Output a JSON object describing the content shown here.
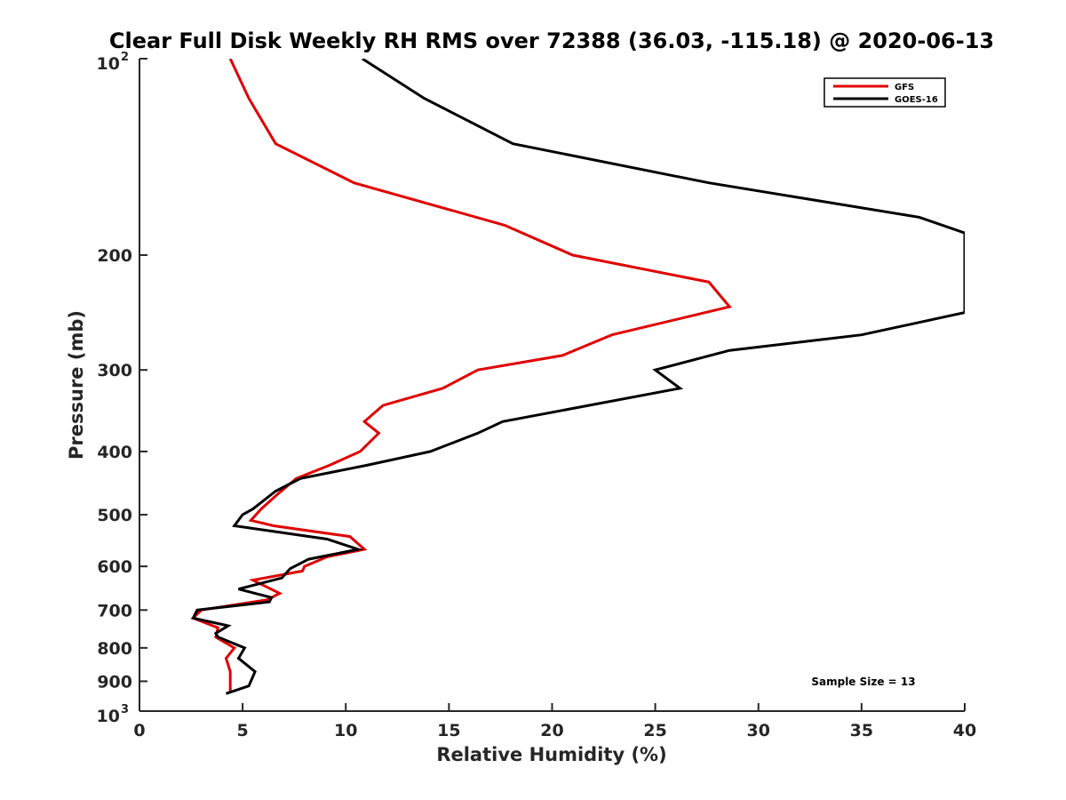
{
  "chart_data": {
    "type": "line",
    "title": "Clear Full Disk Weekly RH RMS over 72388 (36.03, -115.18) @ 2020-06-13",
    "xlabel": "Relative Humidity (%)",
    "ylabel": "Pressure (mb)",
    "xlim": [
      0,
      40
    ],
    "ylim": [
      100,
      1000
    ],
    "y_scale": "log",
    "y_reversed": true,
    "x_ticks": [
      "0",
      "5",
      "10",
      "15",
      "20",
      "25",
      "30",
      "35",
      "40"
    ],
    "y_ticks": [
      {
        "value": 100,
        "base": "10",
        "exp": "2"
      },
      {
        "value": 200,
        "label": "200"
      },
      {
        "value": 300,
        "label": "300"
      },
      {
        "value": 400,
        "label": "400"
      },
      {
        "value": 500,
        "label": "500"
      },
      {
        "value": 600,
        "label": "600"
      },
      {
        "value": 700,
        "label": "700"
      },
      {
        "value": 800,
        "label": "800"
      },
      {
        "value": 900,
        "label": "900"
      },
      {
        "value": 1000,
        "base": "10",
        "exp": "3"
      }
    ],
    "legend_position": "top-right",
    "grid": false,
    "series": [
      {
        "name": "GFS",
        "color": "#e00000",
        "points": [
          [
            4.4,
            100
          ],
          [
            5.3,
            115
          ],
          [
            6.6,
            135
          ],
          [
            10.4,
            155
          ],
          [
            17.7,
            180
          ],
          [
            21.0,
            200
          ],
          [
            27.6,
            220
          ],
          [
            28.6,
            240
          ],
          [
            22.9,
            265
          ],
          [
            20.5,
            285
          ],
          [
            16.4,
            300
          ],
          [
            14.7,
            320
          ],
          [
            11.8,
            340
          ],
          [
            10.9,
            360
          ],
          [
            11.6,
            375
          ],
          [
            10.7,
            400
          ],
          [
            9.2,
            420
          ],
          [
            7.6,
            440
          ],
          [
            6.7,
            465
          ],
          [
            5.9,
            490
          ],
          [
            5.4,
            510
          ],
          [
            6.5,
            520
          ],
          [
            10.2,
            540
          ],
          [
            10.9,
            565
          ],
          [
            9.1,
            580
          ],
          [
            8.0,
            600
          ],
          [
            7.9,
            610
          ],
          [
            5.5,
            630
          ],
          [
            6.8,
            660
          ],
          [
            6.2,
            675
          ],
          [
            3.0,
            700
          ],
          [
            2.6,
            720
          ],
          [
            3.8,
            745
          ],
          [
            3.7,
            770
          ],
          [
            4.6,
            800
          ],
          [
            4.2,
            830
          ],
          [
            4.4,
            870
          ],
          [
            4.4,
            935
          ]
        ]
      },
      {
        "name": "GOES-16",
        "color": "#000000",
        "points": [
          [
            10.8,
            100
          ],
          [
            13.8,
            115
          ],
          [
            18.1,
            135
          ],
          [
            27.6,
            155
          ],
          [
            37.8,
            175
          ],
          [
            40.0,
            185
          ],
          [
            40.0,
            245
          ],
          [
            35.0,
            265
          ],
          [
            28.6,
            280
          ],
          [
            25.0,
            300
          ],
          [
            26.2,
            320
          ],
          [
            17.6,
            360
          ],
          [
            16.4,
            375
          ],
          [
            14.1,
            400
          ],
          [
            11.0,
            420
          ],
          [
            7.8,
            440
          ],
          [
            6.6,
            460
          ],
          [
            5.5,
            490
          ],
          [
            5.0,
            500
          ],
          [
            4.6,
            520
          ],
          [
            9.1,
            545
          ],
          [
            10.6,
            565
          ],
          [
            8.2,
            585
          ],
          [
            7.3,
            605
          ],
          [
            6.9,
            625
          ],
          [
            4.8,
            650
          ],
          [
            6.4,
            670
          ],
          [
            6.3,
            680
          ],
          [
            2.8,
            700
          ],
          [
            2.6,
            720
          ],
          [
            4.3,
            740
          ],
          [
            3.7,
            760
          ],
          [
            3.8,
            770
          ],
          [
            5.1,
            800
          ],
          [
            4.8,
            830
          ],
          [
            5.6,
            870
          ],
          [
            5.3,
            915
          ],
          [
            4.2,
            940
          ]
        ]
      }
    ],
    "annotation": "Sample Size = 13"
  }
}
